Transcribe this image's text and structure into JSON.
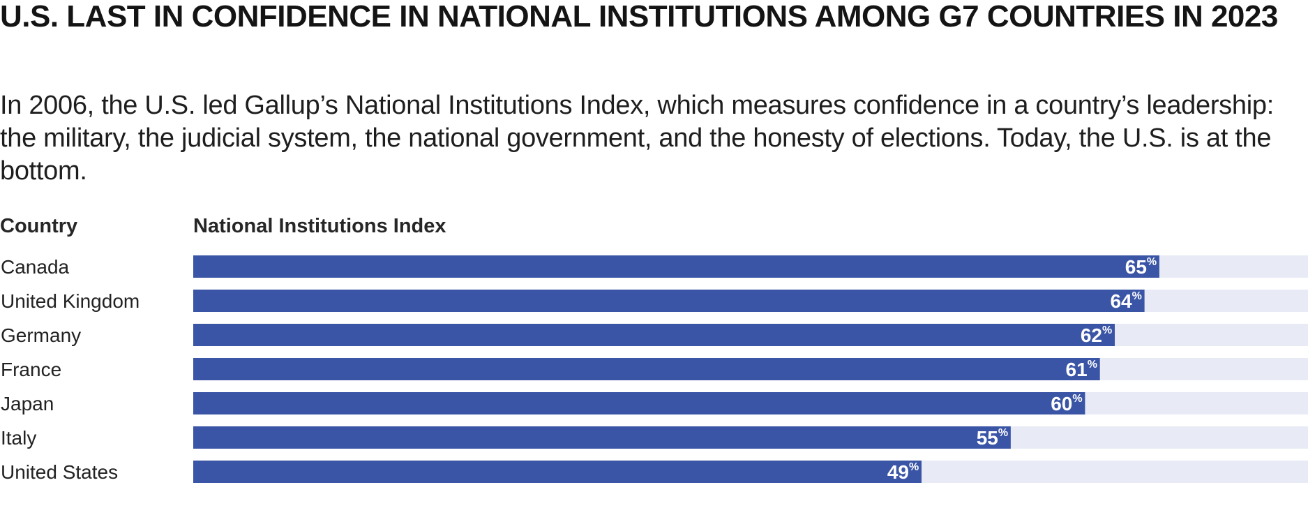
{
  "title": "U.S. LAST IN CONFIDENCE IN NATIONAL INSTITUTIONS AMONG G7 COUNTRIES IN 2023",
  "subtitle": "In 2006, the U.S. led Gallup’s National Institutions Index, which measures confidence in a country’s leadership: the military, the judicial system, the national government, and the honesty of elections. Today, the U.S. is at the bottom.",
  "headers": {
    "country": "Country",
    "index": "National Institutions Index"
  },
  "colors": {
    "bar": "#3b55a6",
    "track": "#e8ebf5",
    "value_text": "#ffffff"
  },
  "chart_data": {
    "type": "bar",
    "orientation": "horizontal",
    "categories": [
      "Canada",
      "United Kingdom",
      "Germany",
      "France",
      "Japan",
      "Italy",
      "United States"
    ],
    "values": [
      65,
      64,
      62,
      61,
      60,
      55,
      49
    ],
    "value_suffix": "%",
    "xlim": [
      0,
      75
    ],
    "grid": false,
    "legend": "none"
  }
}
